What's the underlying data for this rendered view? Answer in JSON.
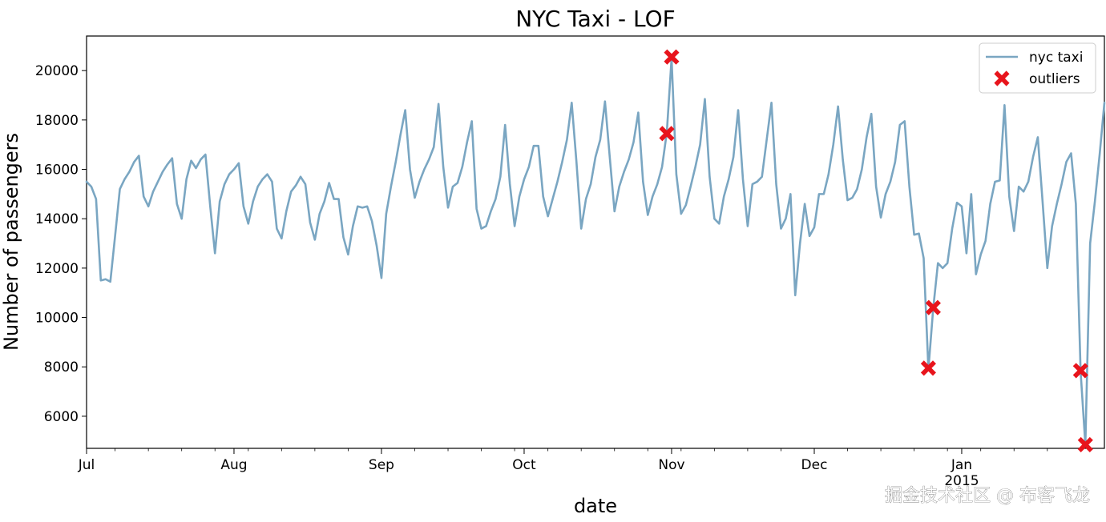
{
  "chart_data": {
    "type": "line",
    "title": "NYC Taxi - LOF",
    "xlabel": "date",
    "ylabel": "Number of passengers",
    "x_start": "2014-07-01",
    "x_end": "2015-01-31",
    "ylim": [
      4700,
      21400
    ],
    "y_ticks": [
      6000,
      8000,
      10000,
      12000,
      14000,
      16000,
      18000,
      20000
    ],
    "x_ticks": [
      {
        "date": "2014-07-01",
        "label": "Jul"
      },
      {
        "date": "2014-08-01",
        "label": "Aug"
      },
      {
        "date": "2014-09-01",
        "label": "Sep"
      },
      {
        "date": "2014-10-01",
        "label": "Oct"
      },
      {
        "date": "2014-11-01",
        "label": "Nov"
      },
      {
        "date": "2014-12-01",
        "label": "Dec"
      },
      {
        "date": "2015-01-01",
        "label": "Jan",
        "sublabel": "2015"
      }
    ],
    "grid": false,
    "legend_position": "top-right",
    "series": [
      {
        "name": "nyc taxi",
        "color": "#7aa6c2",
        "x": [
          "2014-07-01",
          "2014-07-02",
          "2014-07-03",
          "2014-07-04",
          "2014-07-05",
          "2014-07-06",
          "2014-07-07",
          "2014-07-08",
          "2014-07-09",
          "2014-07-10",
          "2014-07-11",
          "2014-07-12",
          "2014-07-13",
          "2014-07-14",
          "2014-07-15",
          "2014-07-16",
          "2014-07-17",
          "2014-07-18",
          "2014-07-19",
          "2014-07-20",
          "2014-07-21",
          "2014-07-22",
          "2014-07-23",
          "2014-07-24",
          "2014-07-25",
          "2014-07-26",
          "2014-07-27",
          "2014-07-28",
          "2014-07-29",
          "2014-07-30",
          "2014-07-31",
          "2014-08-01",
          "2014-08-02",
          "2014-08-03",
          "2014-08-04",
          "2014-08-05",
          "2014-08-06",
          "2014-08-07",
          "2014-08-08",
          "2014-08-09",
          "2014-08-10",
          "2014-08-11",
          "2014-08-12",
          "2014-08-13",
          "2014-08-14",
          "2014-08-15",
          "2014-08-16",
          "2014-08-17",
          "2014-08-18",
          "2014-08-19",
          "2014-08-20",
          "2014-08-21",
          "2014-08-22",
          "2014-08-23",
          "2014-08-24",
          "2014-08-25",
          "2014-08-26",
          "2014-08-27",
          "2014-08-28",
          "2014-08-29",
          "2014-08-30",
          "2014-08-31",
          "2014-09-01",
          "2014-09-02",
          "2014-09-03",
          "2014-09-04",
          "2014-09-05",
          "2014-09-06",
          "2014-09-07",
          "2014-09-08",
          "2014-09-09",
          "2014-09-10",
          "2014-09-11",
          "2014-09-12",
          "2014-09-13",
          "2014-09-14",
          "2014-09-15",
          "2014-09-16",
          "2014-09-17",
          "2014-09-18",
          "2014-09-19",
          "2014-09-20",
          "2014-09-21",
          "2014-09-22",
          "2014-09-23",
          "2014-09-24",
          "2014-09-25",
          "2014-09-26",
          "2014-09-27",
          "2014-09-28",
          "2014-09-29",
          "2014-09-30",
          "2014-10-01",
          "2014-10-02",
          "2014-10-03",
          "2014-10-04",
          "2014-10-05",
          "2014-10-06",
          "2014-10-07",
          "2014-10-08",
          "2014-10-09",
          "2014-10-10",
          "2014-10-11",
          "2014-10-12",
          "2014-10-13",
          "2014-10-14",
          "2014-10-15",
          "2014-10-16",
          "2014-10-17",
          "2014-10-18",
          "2014-10-19",
          "2014-10-20",
          "2014-10-21",
          "2014-10-22",
          "2014-10-23",
          "2014-10-24",
          "2014-10-25",
          "2014-10-26",
          "2014-10-27",
          "2014-10-28",
          "2014-10-29",
          "2014-10-30",
          "2014-10-31",
          "2014-11-01",
          "2014-11-02",
          "2014-11-03",
          "2014-11-04",
          "2014-11-05",
          "2014-11-06",
          "2014-11-07",
          "2014-11-08",
          "2014-11-09",
          "2014-11-10",
          "2014-11-11",
          "2014-11-12",
          "2014-11-13",
          "2014-11-14",
          "2014-11-15",
          "2014-11-16",
          "2014-11-17",
          "2014-11-18",
          "2014-11-19",
          "2014-11-20",
          "2014-11-21",
          "2014-11-22",
          "2014-11-23",
          "2014-11-24",
          "2014-11-25",
          "2014-11-26",
          "2014-11-27",
          "2014-11-28",
          "2014-11-29",
          "2014-11-30",
          "2014-12-01",
          "2014-12-02",
          "2014-12-03",
          "2014-12-04",
          "2014-12-05",
          "2014-12-06",
          "2014-12-07",
          "2014-12-08",
          "2014-12-09",
          "2014-12-10",
          "2014-12-11",
          "2014-12-12",
          "2014-12-13",
          "2014-12-14",
          "2014-12-15",
          "2014-12-16",
          "2014-12-17",
          "2014-12-18",
          "2014-12-19",
          "2014-12-20",
          "2014-12-21",
          "2014-12-22",
          "2014-12-23",
          "2014-12-24",
          "2014-12-25",
          "2014-12-26",
          "2014-12-27",
          "2014-12-28",
          "2014-12-29",
          "2014-12-30",
          "2014-12-31",
          "2015-01-01",
          "2015-01-02",
          "2015-01-03",
          "2015-01-04",
          "2015-01-05",
          "2015-01-06",
          "2015-01-07",
          "2015-01-08",
          "2015-01-09",
          "2015-01-10",
          "2015-01-11",
          "2015-01-12",
          "2015-01-13",
          "2015-01-14",
          "2015-01-15",
          "2015-01-16",
          "2015-01-17",
          "2015-01-18",
          "2015-01-19",
          "2015-01-20",
          "2015-01-21",
          "2015-01-22",
          "2015-01-23",
          "2015-01-24",
          "2015-01-25",
          "2015-01-26",
          "2015-01-27",
          "2015-01-28",
          "2015-01-29",
          "2015-01-30",
          "2015-01-31"
        ],
        "values": [
          15500,
          15300,
          14800,
          11500,
          11550,
          11450,
          13300,
          15200,
          15600,
          15900,
          16300,
          16550,
          14900,
          14500,
          15100,
          15500,
          15900,
          16200,
          16450,
          14600,
          14000,
          15600,
          16350,
          16050,
          16400,
          16600,
          14500,
          12600,
          14700,
          15400,
          15800,
          16000,
          16250,
          14500,
          13800,
          14700,
          15300,
          15600,
          15800,
          15500,
          13600,
          13200,
          14300,
          15100,
          15350,
          15700,
          15400,
          13850,
          13150,
          14200,
          14700,
          15450,
          14800,
          14800,
          13250,
          12550,
          13700,
          14500,
          14450,
          14500,
          13900,
          12900,
          11600,
          14200,
          15300,
          16300,
          17400,
          18400,
          16000,
          14850,
          15500,
          16000,
          16400,
          16900,
          18650,
          16100,
          14450,
          15300,
          15450,
          16100,
          17100,
          17950,
          14400,
          13600,
          13700,
          14300,
          14800,
          15700,
          17800,
          15400,
          13700,
          14900,
          15600,
          16100,
          16950,
          16950,
          14900,
          14100,
          14800,
          15500,
          16300,
          17200,
          18700,
          16300,
          13600,
          14800,
          15400,
          16500,
          17200,
          18750,
          16500,
          14300,
          15300,
          15900,
          16400,
          17100,
          18300,
          15500,
          14150,
          14900,
          15400,
          16100,
          17500,
          20500,
          15800,
          14200,
          14550,
          15300,
          16100,
          17000,
          18850,
          15700,
          14000,
          13800,
          14900,
          15600,
          16500,
          18400,
          15600,
          13700,
          15400,
          15500,
          15700,
          17200,
          18700,
          15400,
          13600,
          14000,
          15000,
          10900,
          13000,
          14600,
          13300,
          13650,
          15000,
          15000,
          15800,
          17000,
          18550,
          16400,
          14750,
          14850,
          15200,
          16000,
          17300,
          18250,
          15300,
          14050,
          15000,
          15500,
          16300,
          17800,
          17950,
          15300,
          13350,
          13400,
          12400,
          7900,
          10350,
          12200,
          12000,
          12200,
          13600,
          14650,
          14500,
          12600,
          15000,
          11750,
          12550,
          13100,
          14600,
          15500,
          15550,
          18600,
          14900,
          13500,
          15300,
          15100,
          15500,
          16500,
          17300,
          14700,
          12000,
          13700,
          14600,
          15400,
          16300,
          16650,
          14600,
          7800,
          4850,
          13000,
          14700,
          16600,
          18700
        ]
      },
      {
        "name": "outliers",
        "color": "#e8141c",
        "marker": "X",
        "x": [
          "2014-10-31",
          "2014-11-01",
          "2014-12-25",
          "2014-12-26",
          "2015-01-26",
          "2015-01-27"
        ],
        "values": [
          17450,
          20550,
          7950,
          10400,
          7850,
          4850
        ]
      }
    ]
  },
  "watermark": "掘金技术社区 @ 布客飞龙"
}
